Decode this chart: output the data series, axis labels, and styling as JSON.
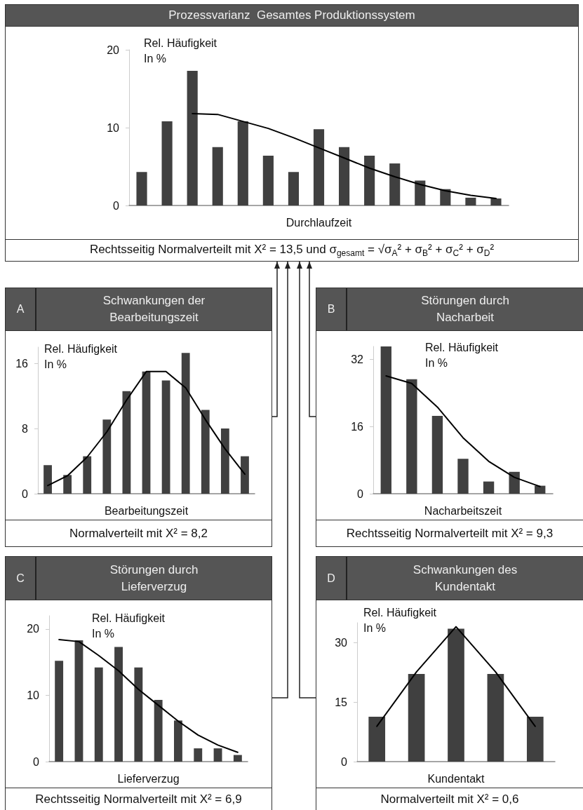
{
  "chart_data": [
    {
      "type": "bar",
      "title": "Prozessvarianz  Gesamtes Produktionssystem",
      "xlabel": "Durchlaufzeit",
      "ylabel": "Rel. Häufigkeit\nIn %",
      "annotations": [
        "Rechtsseitig Normalverteilt mit X² = 13,5 und σ$_{gesamt}$ = √σ$_{A}$² + σ$_{B}$² + σ$_{C}$² + σ$_{D}$²"
      ],
      "categories": [
        null,
        null,
        null,
        null,
        null,
        null,
        null,
        null,
        null,
        null,
        null,
        null,
        null,
        null,
        null
      ],
      "ylim": [
        0,
        20
      ],
      "yticks": [
        0,
        10,
        20
      ],
      "series": [
        {
          "color": "#404040",
          "values": [
            4.3,
            10.8,
            17.3,
            7.5,
            10.8,
            6.4,
            4.3,
            9.8,
            7.5,
            6.4,
            5.4,
            3.2,
            2.1,
            1.0,
            0.9
          ]
        },
        {
          "type": "line",
          "color": "#000000",
          "values": [
            null,
            null,
            11.8,
            11.7,
            10.8,
            9.9,
            8.7,
            7.4,
            6.1,
            4.8,
            3.7,
            2.7,
            1.9,
            1.3,
            0.9
          ]
        }
      ]
    },
    {
      "type": "bar",
      "title": "Schwankungen der\nBearbeitungszeit",
      "subtitle": "A",
      "xlabel": "Bearbeitungszeit",
      "ylabel": "Rel. Häufigkeit\nIn %",
      "annotations": [
        "Normalverteilt mit X² = 8,2"
      ],
      "categories": [
        null,
        null,
        null,
        null,
        null,
        null,
        null,
        null,
        null,
        null,
        null
      ],
      "ylim": [
        0,
        18
      ],
      "yticks": [
        0,
        8,
        16
      ],
      "series": [
        {
          "color": "#404040",
          "values": [
            3.5,
            2.3,
            4.6,
            9.1,
            12.6,
            15.0,
            13.9,
            17.3,
            10.3,
            8.0,
            4.6
          ]
        },
        {
          "type": "line",
          "color": "#000000",
          "values": [
            1.0,
            2.2,
            4.5,
            7.6,
            11.5,
            15.0,
            15.0,
            13.0,
            9.1,
            5.5,
            2.4
          ]
        }
      ]
    },
    {
      "type": "bar",
      "title": "Störungen durch\nNacharbeit",
      "subtitle": "B",
      "xlabel": "Nacharbeitszeit",
      "ylabel": "Rel. Häufigkeit\nIn %",
      "annotations": [
        "Rechtsseitig Normalverteilt mit X² = 9,3"
      ],
      "categories": [
        null,
        null,
        null,
        null,
        null,
        null,
        null
      ],
      "ylim": [
        0,
        35
      ],
      "yticks": [
        0,
        16,
        32
      ],
      "series": [
        {
          "color": "#404040",
          "values": [
            35,
            27.2,
            18.5,
            8.3,
            2.9,
            5.2,
            1.9
          ]
        },
        {
          "type": "line",
          "color": "#000000",
          "values": [
            28.0,
            26.2,
            20.6,
            13.3,
            7.7,
            3.9,
            1.7
          ]
        }
      ]
    },
    {
      "type": "bar",
      "title": "Störungen durch\nLieferverzug",
      "subtitle": "C",
      "xlabel": "Lieferverzug",
      "ylabel": "Rel. Häufigkeit\nIn %",
      "annotations": [
        "Rechtsseitig Normalverteilt mit X² = 6,9"
      ],
      "categories": [
        null,
        null,
        null,
        null,
        null,
        null,
        null,
        null,
        null,
        null
      ],
      "ylim": [
        0,
        22
      ],
      "yticks": [
        0,
        10,
        20
      ],
      "series": [
        {
          "color": "#404040",
          "values": [
            15.2,
            18.3,
            14.2,
            17.3,
            14.2,
            9.3,
            6.2,
            2.0,
            2.0,
            1.0
          ]
        },
        {
          "type": "line",
          "color": "#000000",
          "values": [
            18.4,
            18.1,
            16.0,
            13.7,
            10.9,
            8.5,
            6.1,
            4.0,
            2.5,
            1.4
          ]
        }
      ]
    },
    {
      "type": "bar",
      "title": "Schwankungen des\nKundentakt",
      "subtitle": "D",
      "xlabel": "Kundentakt",
      "ylabel": "Rel. Häufigkeit\nIn %",
      "annotations": [
        "Normalverteilt mit X² = 0,6"
      ],
      "categories": [
        null,
        null,
        null,
        null,
        null
      ],
      "ylim": [
        0,
        35
      ],
      "yticks": [
        0,
        15,
        30
      ],
      "series": [
        {
          "color": "#404040",
          "values": [
            11.3,
            22.1,
            33.5,
            22.1,
            11.3
          ]
        },
        {
          "type": "line",
          "color": "#000000",
          "values": [
            8.9,
            22.6,
            34.0,
            22.6,
            8.9
          ]
        }
      ]
    }
  ]
}
